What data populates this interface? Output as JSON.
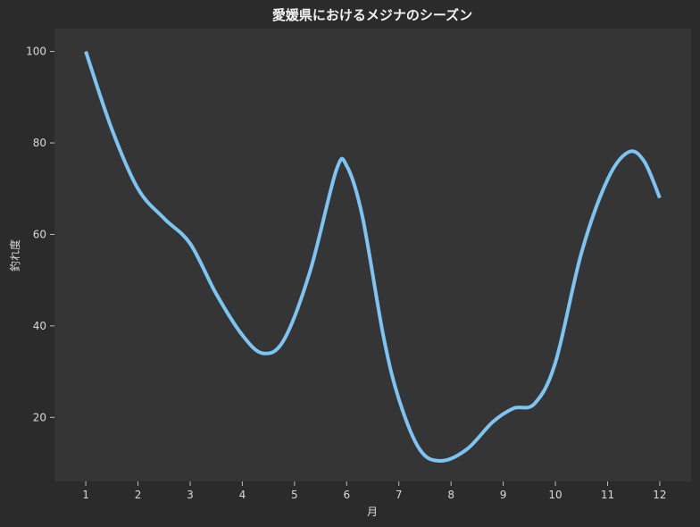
{
  "chart_data": {
    "type": "line",
    "title": "愛媛県におけるメジナのシーズン",
    "xlabel": "月",
    "ylabel": "釣れ度",
    "x_ticks": [
      1,
      2,
      3,
      4,
      5,
      6,
      7,
      8,
      9,
      10,
      11,
      12
    ],
    "y_ticks": [
      20,
      40,
      60,
      80,
      100
    ],
    "xlim": [
      0.4,
      12.6
    ],
    "ylim": [
      6,
      105
    ],
    "grid": false,
    "background": "#353535",
    "outer_background": "#2b2b2b",
    "series": [
      {
        "color": "#7cc4f2",
        "points": [
          [
            1.0,
            100
          ],
          [
            1.5,
            83
          ],
          [
            2.0,
            70
          ],
          [
            2.5,
            63.5
          ],
          [
            3.0,
            58
          ],
          [
            3.5,
            47
          ],
          [
            4.0,
            38
          ],
          [
            4.4,
            34
          ],
          [
            4.8,
            37
          ],
          [
            5.3,
            52
          ],
          [
            5.8,
            74
          ],
          [
            6.0,
            75
          ],
          [
            6.3,
            64
          ],
          [
            6.7,
            38
          ],
          [
            7.0,
            24
          ],
          [
            7.4,
            13
          ],
          [
            7.8,
            10.5
          ],
          [
            8.3,
            13
          ],
          [
            8.8,
            19
          ],
          [
            9.2,
            22
          ],
          [
            9.6,
            23
          ],
          [
            10.0,
            32
          ],
          [
            10.5,
            56
          ],
          [
            11.0,
            72
          ],
          [
            11.4,
            78
          ],
          [
            11.7,
            76
          ],
          [
            12.0,
            68
          ]
        ]
      }
    ]
  }
}
